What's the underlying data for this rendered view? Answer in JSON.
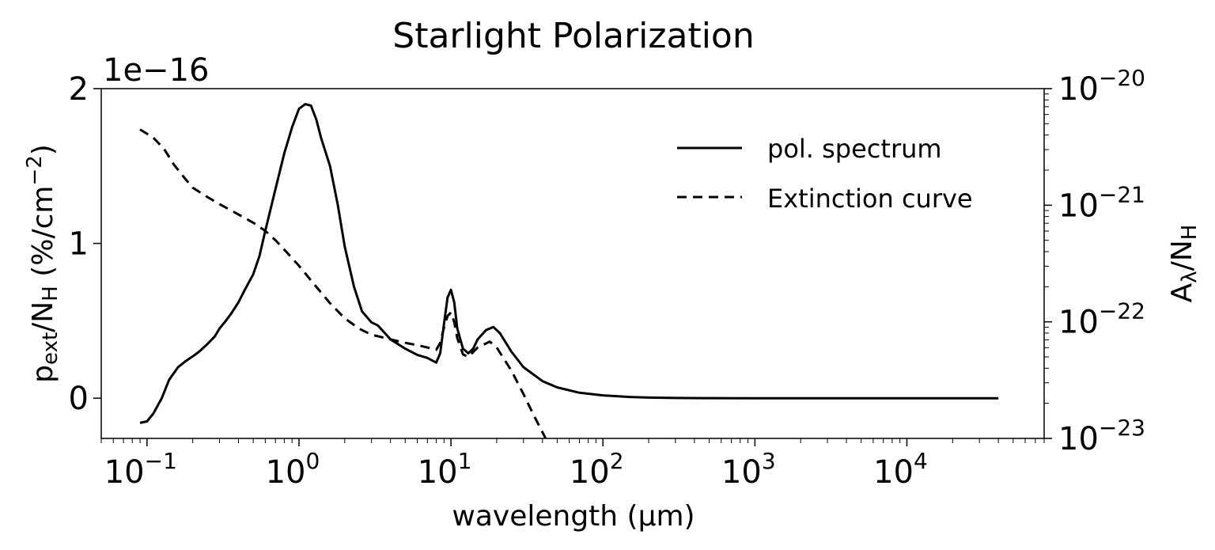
{
  "chart_data": {
    "type": "line",
    "title": "Starlight Polarization",
    "xlabel": "wavelength (μm)",
    "x_scale": "log",
    "xlim": [
      0.05,
      80000
    ],
    "left_axis": {
      "label_main": "p",
      "label_sub": "ext",
      "label_mid": "/N",
      "label_sub2": "H",
      "label_unit": " (%/cm",
      "label_sup": "−2",
      "label_end": ")",
      "offset_text": "1e−16",
      "scale_factor": 1e-16,
      "ylim": [
        -0.26,
        2.0
      ],
      "ticks": [
        0,
        1,
        2
      ],
      "tick_labels": [
        "0",
        "1",
        "2"
      ]
    },
    "right_axis": {
      "label_main": "A",
      "label_sub": "λ",
      "label_mid": "/N",
      "label_sub2": "H",
      "scale": "log",
      "ylim_exp": [
        -23,
        -20
      ],
      "ticks_exp": [
        -23,
        -22,
        -21,
        -20
      ],
      "tick_base": "10",
      "tick_sups": [
        "−23",
        "−22",
        "−21",
        "−20"
      ]
    },
    "x_ticks_exp": [
      -1,
      0,
      1,
      2,
      3,
      4
    ],
    "x_tick_base": "10",
    "x_tick_sups": [
      "−1",
      "0",
      "1",
      "2",
      "3",
      "4"
    ],
    "legend_position": "top-right",
    "series": [
      {
        "name": "pol. spectrum",
        "axis": "left",
        "style": "solid",
        "color": "#000000",
        "x": [
          0.09,
          0.1,
          0.11,
          0.125,
          0.14,
          0.16,
          0.18,
          0.2,
          0.22,
          0.25,
          0.28,
          0.3,
          0.33,
          0.36,
          0.4,
          0.44,
          0.5,
          0.55,
          0.6,
          0.65,
          0.7,
          0.8,
          0.9,
          1.0,
          1.1,
          1.2,
          1.3,
          1.4,
          1.6,
          1.8,
          2.0,
          2.3,
          2.6,
          3.0,
          3.3,
          3.6,
          4.0,
          5.0,
          6.0,
          7.0,
          8.0,
          8.5,
          9.0,
          9.5,
          10.0,
          10.5,
          11.0,
          12.0,
          13.0,
          14.0,
          15.0,
          17.0,
          19.0,
          21.0,
          25.0,
          30.0,
          40.0,
          50.0,
          70.0,
          100.0,
          150.0,
          200.0,
          300.0,
          500.0,
          1000.0,
          10000.0,
          40000.0
        ],
        "y": [
          -0.16,
          -0.15,
          -0.1,
          0.0,
          0.12,
          0.2,
          0.24,
          0.27,
          0.3,
          0.35,
          0.4,
          0.45,
          0.5,
          0.55,
          0.62,
          0.7,
          0.8,
          0.92,
          1.08,
          1.22,
          1.35,
          1.58,
          1.75,
          1.87,
          1.9,
          1.89,
          1.8,
          1.68,
          1.5,
          1.25,
          0.98,
          0.72,
          0.56,
          0.49,
          0.47,
          0.43,
          0.38,
          0.32,
          0.28,
          0.26,
          0.23,
          0.29,
          0.48,
          0.65,
          0.7,
          0.62,
          0.45,
          0.32,
          0.29,
          0.32,
          0.38,
          0.44,
          0.46,
          0.42,
          0.3,
          0.2,
          0.11,
          0.07,
          0.035,
          0.018,
          0.008,
          0.004,
          0.0015,
          0.0005,
          0.0,
          0.0,
          0.0
        ]
      },
      {
        "name": "Extinction curve",
        "axis": "right",
        "style": "dashed",
        "color": "#000000",
        "x": [
          0.09,
          0.11,
          0.13,
          0.15,
          0.18,
          0.2,
          0.25,
          0.3,
          0.4,
          0.5,
          0.6,
          0.7,
          0.8,
          1.0,
          1.3,
          1.6,
          2.0,
          2.5,
          3.0,
          4.0,
          5.0,
          6.0,
          7.0,
          8.0,
          8.5,
          9.0,
          9.5,
          10.0,
          10.5,
          11.0,
          12.0,
          13.0,
          15.0,
          18.0,
          20.0,
          25.0,
          30.0,
          35.0,
          42.0
        ],
        "y_exp": [
          -20.35,
          -20.42,
          -20.52,
          -20.65,
          -20.78,
          -20.85,
          -20.93,
          -20.99,
          -21.08,
          -21.15,
          -21.22,
          -21.3,
          -21.38,
          -21.52,
          -21.7,
          -21.84,
          -21.97,
          -22.06,
          -22.11,
          -22.15,
          -22.18,
          -22.2,
          -22.22,
          -22.24,
          -22.18,
          -22.05,
          -21.95,
          -21.92,
          -22.0,
          -22.14,
          -22.28,
          -22.3,
          -22.22,
          -22.17,
          -22.22,
          -22.42,
          -22.62,
          -22.8,
          -23.0
        ]
      }
    ]
  }
}
